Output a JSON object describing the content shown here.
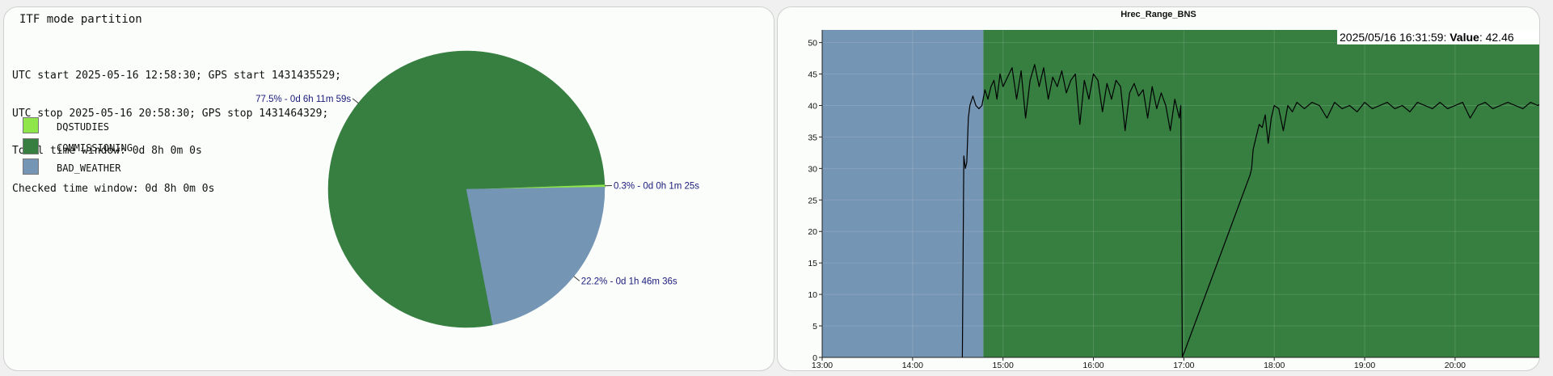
{
  "pie_panel": {
    "title": "ITF mode partition",
    "info_lines": [
      "UTC start 2025-05-16 12:58:30; GPS start 1431435529;",
      "UTC stop 2025-05-16 20:58:30; GPS stop 1431464329;",
      "Total time window: 0d 8h 0m 0s",
      "Checked time window: 0d 8h 0m 0s"
    ]
  },
  "line_panel": {
    "title": "Hrec_Range_BNS",
    "value_readout": {
      "timestamp": "2025/05/16 16:31:59:",
      "label": "Value",
      "value": "42.46"
    }
  },
  "colors": {
    "dqstudies": "#8ee64a",
    "commissioning": "#367f41",
    "bad_weather": "#7595b5",
    "label_text": "#1a1a7a"
  },
  "chart_data": [
    {
      "type": "pie",
      "title": "ITF mode partition",
      "legend_position": "left",
      "slices": [
        {
          "name": "DQSTUDIES",
          "percent": 0.3,
          "label": "0.3% - 0d 0h 1m 25s",
          "color": "#8ee64a"
        },
        {
          "name": "COMMISSIONING",
          "percent": 77.5,
          "label": "77.5% - 0d 6h 11m 59s",
          "color": "#367f41"
        },
        {
          "name": "BAD_WEATHER",
          "percent": 22.2,
          "label": "22.2% - 0d 1h 46m 36s",
          "color": "#7595b5"
        }
      ]
    },
    {
      "type": "line",
      "title": "Hrec_Range_BNS",
      "xlim": [
        "13:00",
        "20:58"
      ],
      "ylim": [
        0,
        52
      ],
      "x_ticks": [
        "13:00",
        "14:00",
        "15:00",
        "16:00",
        "17:00",
        "18:00",
        "19:00",
        "20:00"
      ],
      "y_ticks": [
        0,
        5,
        10,
        15,
        20,
        25,
        30,
        35,
        40,
        45,
        50
      ],
      "grid": true,
      "background_bands": [
        {
          "from": "13:00",
          "to": "14:47",
          "color": "#7595b5"
        },
        {
          "from": "14:47",
          "to": "20:58",
          "color": "#367f41"
        }
      ],
      "series": [
        {
          "color": "#000000",
          "x": [
            "14:33",
            "14:34",
            "14:35",
            "14:36",
            "14:37",
            "14:38",
            "14:40",
            "14:42",
            "14:44",
            "14:46",
            "14:48",
            "14:50",
            "14:52",
            "14:54",
            "14:56",
            "14:58",
            "15:00",
            "15:03",
            "15:06",
            "15:09",
            "15:12",
            "15:15",
            "15:18",
            "15:21",
            "15:24",
            "15:27",
            "15:30",
            "15:33",
            "15:36",
            "15:39",
            "15:42",
            "15:45",
            "15:48",
            "15:51",
            "15:54",
            "15:57",
            "16:00",
            "16:03",
            "16:06",
            "16:09",
            "16:12",
            "16:15",
            "16:18",
            "16:21",
            "16:24",
            "16:27",
            "16:30",
            "16:33",
            "16:36",
            "16:39",
            "16:42",
            "16:45",
            "16:48",
            "16:51",
            "16:54",
            "16:57",
            "16:58",
            "16:59",
            "17:44",
            "17:45",
            "17:46",
            "17:48",
            "17:50",
            "17:52",
            "17:54",
            "17:56",
            "17:58",
            "18:00",
            "18:03",
            "18:06",
            "18:09",
            "18:12",
            "18:15",
            "18:20",
            "18:25",
            "18:30",
            "18:35",
            "18:40",
            "18:45",
            "18:50",
            "18:55",
            "19:00",
            "19:05",
            "19:10",
            "19:15",
            "19:20",
            "19:25",
            "19:30",
            "19:35",
            "19:40",
            "19:45",
            "19:50",
            "19:55",
            "20:00",
            "20:05",
            "20:10",
            "20:15",
            "20:20",
            "20:25",
            "20:30",
            "20:35",
            "20:40",
            "20:45",
            "20:50",
            "20:55",
            "20:58"
          ],
          "y": [
            0,
            32,
            30,
            31,
            38,
            40,
            41.5,
            40,
            39.5,
            40,
            42.5,
            41,
            43,
            44,
            41,
            45,
            43,
            44.5,
            46,
            41,
            45.5,
            38,
            44,
            46.5,
            43,
            46,
            41,
            44.5,
            43,
            45.5,
            42,
            44,
            45,
            37,
            44,
            41,
            45,
            44,
            39,
            43.5,
            41,
            44,
            43,
            36,
            42,
            43.5,
            41.5,
            42.5,
            38,
            43,
            39.5,
            42,
            40,
            36,
            41,
            38,
            40,
            0,
            29,
            30,
            33,
            35,
            37,
            36.5,
            38.5,
            34,
            38,
            40,
            39.5,
            36,
            40,
            39,
            40.5,
            39.5,
            40.5,
            40,
            38,
            40.5,
            39.5,
            40,
            39,
            40.5,
            39.5,
            40,
            40.5,
            39.5,
            40,
            39,
            40.5,
            40,
            39.5,
            40.5,
            39.5,
            40,
            40.5,
            38,
            40,
            40.5,
            39.5,
            40,
            40.5,
            40,
            39.5,
            40.5,
            40,
            40.5
          ]
        }
      ]
    }
  ]
}
